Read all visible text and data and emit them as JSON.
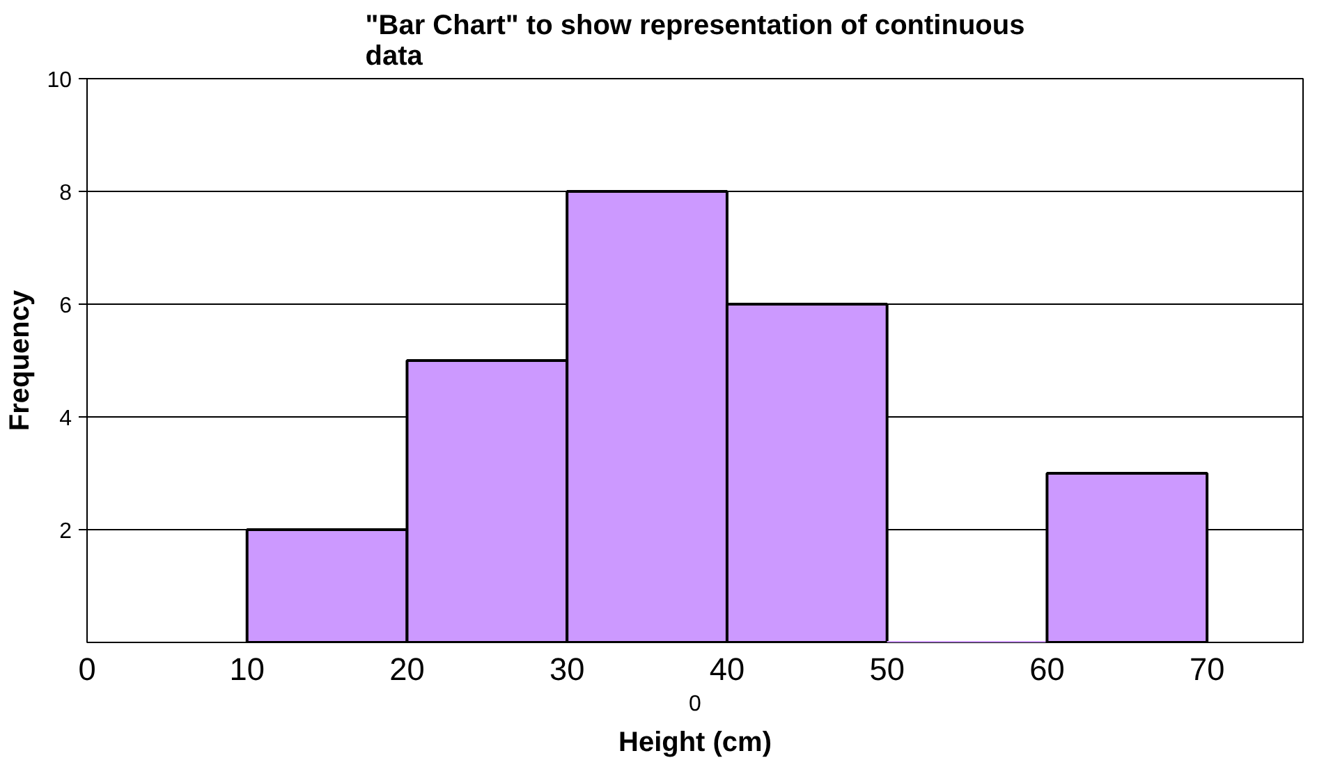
{
  "chart_data": {
    "type": "histogram",
    "title": "\"Bar Chart\" to show representation of continuous\ndata",
    "xlabel": "Height (cm)",
    "ylabel": "Frequency",
    "bins": [
      10,
      20,
      30,
      40,
      50,
      60,
      70
    ],
    "values": [
      2,
      5,
      8,
      6,
      0,
      3
    ],
    "color": "#cc99ff",
    "xlim": [
      0,
      76
    ],
    "xticks": [
      0,
      10,
      20,
      30,
      40,
      50,
      60,
      70
    ],
    "ylim": [
      0,
      10
    ],
    "yticks": [
      2,
      4,
      6,
      8,
      10
    ],
    "grid": "y",
    "annotations": [
      "0"
    ]
  }
}
